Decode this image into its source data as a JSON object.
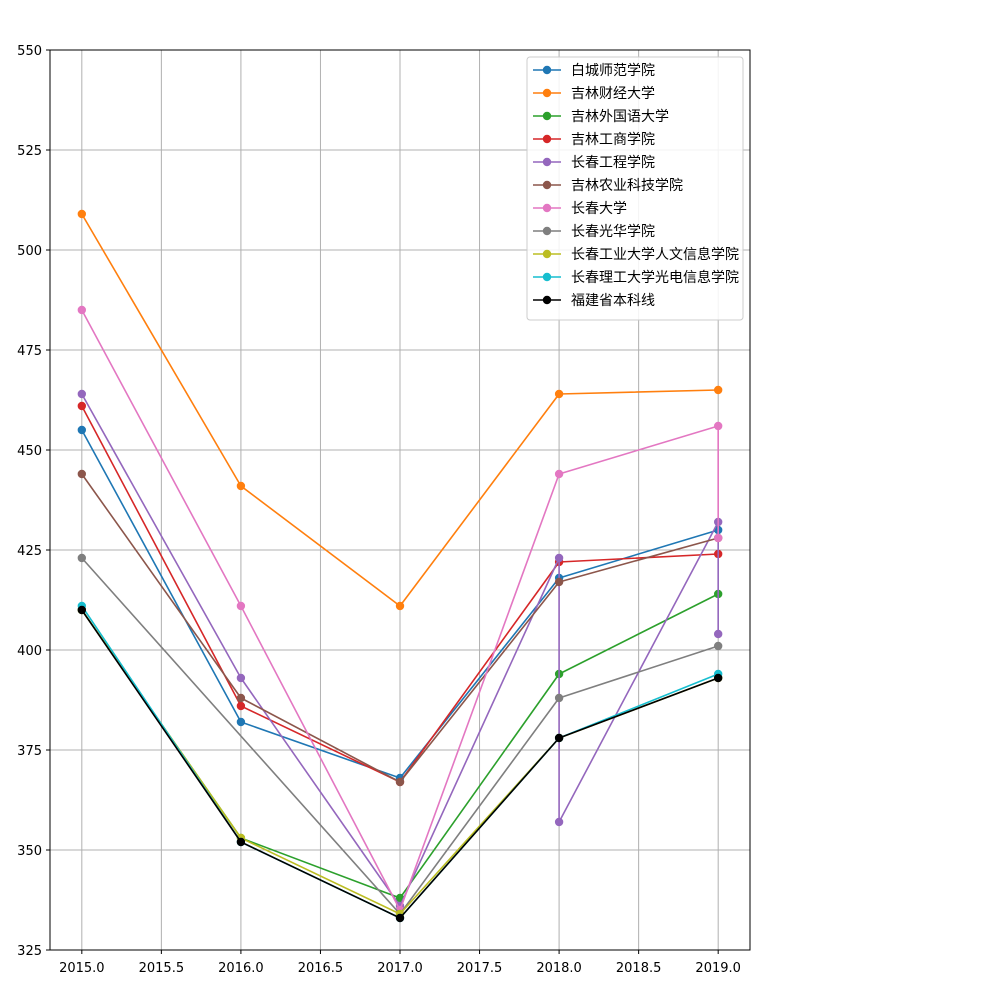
{
  "chart_data": {
    "type": "line",
    "title": "",
    "xlabel": "",
    "ylabel": "",
    "xlim": [
      2014.8,
      2019.2
    ],
    "ylim": [
      325,
      550
    ],
    "x_ticks": [
      2015.0,
      2015.5,
      2016.0,
      2016.5,
      2017.0,
      2017.5,
      2018.0,
      2018.5,
      2019.0
    ],
    "x_tick_labels": [
      "2015.0",
      "2015.5",
      "2016.0",
      "2016.5",
      "2017.0",
      "2017.5",
      "2018.0",
      "2018.5",
      "2019.0"
    ],
    "y_ticks": [
      325,
      350,
      375,
      400,
      425,
      450,
      475,
      500,
      525,
      550
    ],
    "y_tick_labels": [
      "325",
      "350",
      "375",
      "400",
      "425",
      "450",
      "475",
      "500",
      "525",
      "550"
    ],
    "grid": true,
    "legend_position": "top-right",
    "series": [
      {
        "name": "白城师范学院",
        "color": "#1f77b4",
        "points": [
          [
            2015,
            455
          ],
          [
            2016,
            382
          ],
          [
            2017,
            368
          ],
          [
            2018,
            418
          ],
          [
            2019,
            430
          ]
        ]
      },
      {
        "name": "吉林财经大学",
        "color": "#ff7f0e",
        "points": [
          [
            2015,
            509
          ],
          [
            2016,
            441
          ],
          [
            2017,
            411
          ],
          [
            2018,
            464
          ],
          [
            2019,
            465
          ]
        ]
      },
      {
        "name": "吉林外国语大学",
        "color": "#2ca02c",
        "points": [
          [
            2015,
            410
          ],
          [
            2016,
            353
          ],
          [
            2017,
            338
          ],
          [
            2018,
            394
          ],
          [
            2019,
            414
          ]
        ]
      },
      {
        "name": "吉林工商学院",
        "color": "#d62728",
        "points": [
          [
            2015,
            461
          ],
          [
            2016,
            386
          ],
          [
            2017,
            367
          ],
          [
            2018,
            422
          ],
          [
            2019,
            424
          ]
        ]
      },
      {
        "name": "长春工程学院",
        "color": "#9467bd",
        "points": [
          [
            2015,
            464
          ],
          [
            2016,
            393
          ],
          [
            2017,
            336
          ],
          [
            2018,
            423
          ],
          [
            2018,
            357
          ],
          [
            2019,
            432
          ],
          [
            2019,
            404
          ]
        ]
      },
      {
        "name": "吉林农业科技学院",
        "color": "#8c564b",
        "points": [
          [
            2015,
            444
          ],
          [
            2016,
            388
          ],
          [
            2017,
            367
          ],
          [
            2018,
            417
          ],
          [
            2019,
            428
          ]
        ]
      },
      {
        "name": "长春大学",
        "color": "#e377c2",
        "points": [
          [
            2015,
            485
          ],
          [
            2016,
            411
          ],
          [
            2017,
            335
          ],
          [
            2018,
            444
          ],
          [
            2019,
            456
          ],
          [
            2019,
            428
          ]
        ]
      },
      {
        "name": "长春光华学院",
        "color": "#7f7f7f",
        "points": [
          [
            2015,
            423
          ],
          [
            2017,
            334
          ],
          [
            2018,
            388
          ],
          [
            2019,
            401
          ]
        ]
      },
      {
        "name": "长春工业大学人文信息学院",
        "color": "#bcbd22",
        "points": [
          [
            2015,
            410
          ],
          [
            2016,
            353
          ],
          [
            2017,
            334
          ],
          [
            2018,
            378
          ],
          [
            2019,
            393
          ]
        ]
      },
      {
        "name": "长春理工大学光电信息学院",
        "color": "#17becf",
        "points": [
          [
            2015,
            411
          ],
          [
            2016,
            352
          ],
          [
            2017,
            333
          ],
          [
            2018,
            378
          ],
          [
            2019,
            394
          ]
        ]
      },
      {
        "name": "福建省本科线",
        "color": "#000000",
        "points": [
          [
            2015,
            410
          ],
          [
            2016,
            352
          ],
          [
            2017,
            333
          ],
          [
            2018,
            378
          ],
          [
            2019,
            393
          ]
        ]
      }
    ]
  }
}
